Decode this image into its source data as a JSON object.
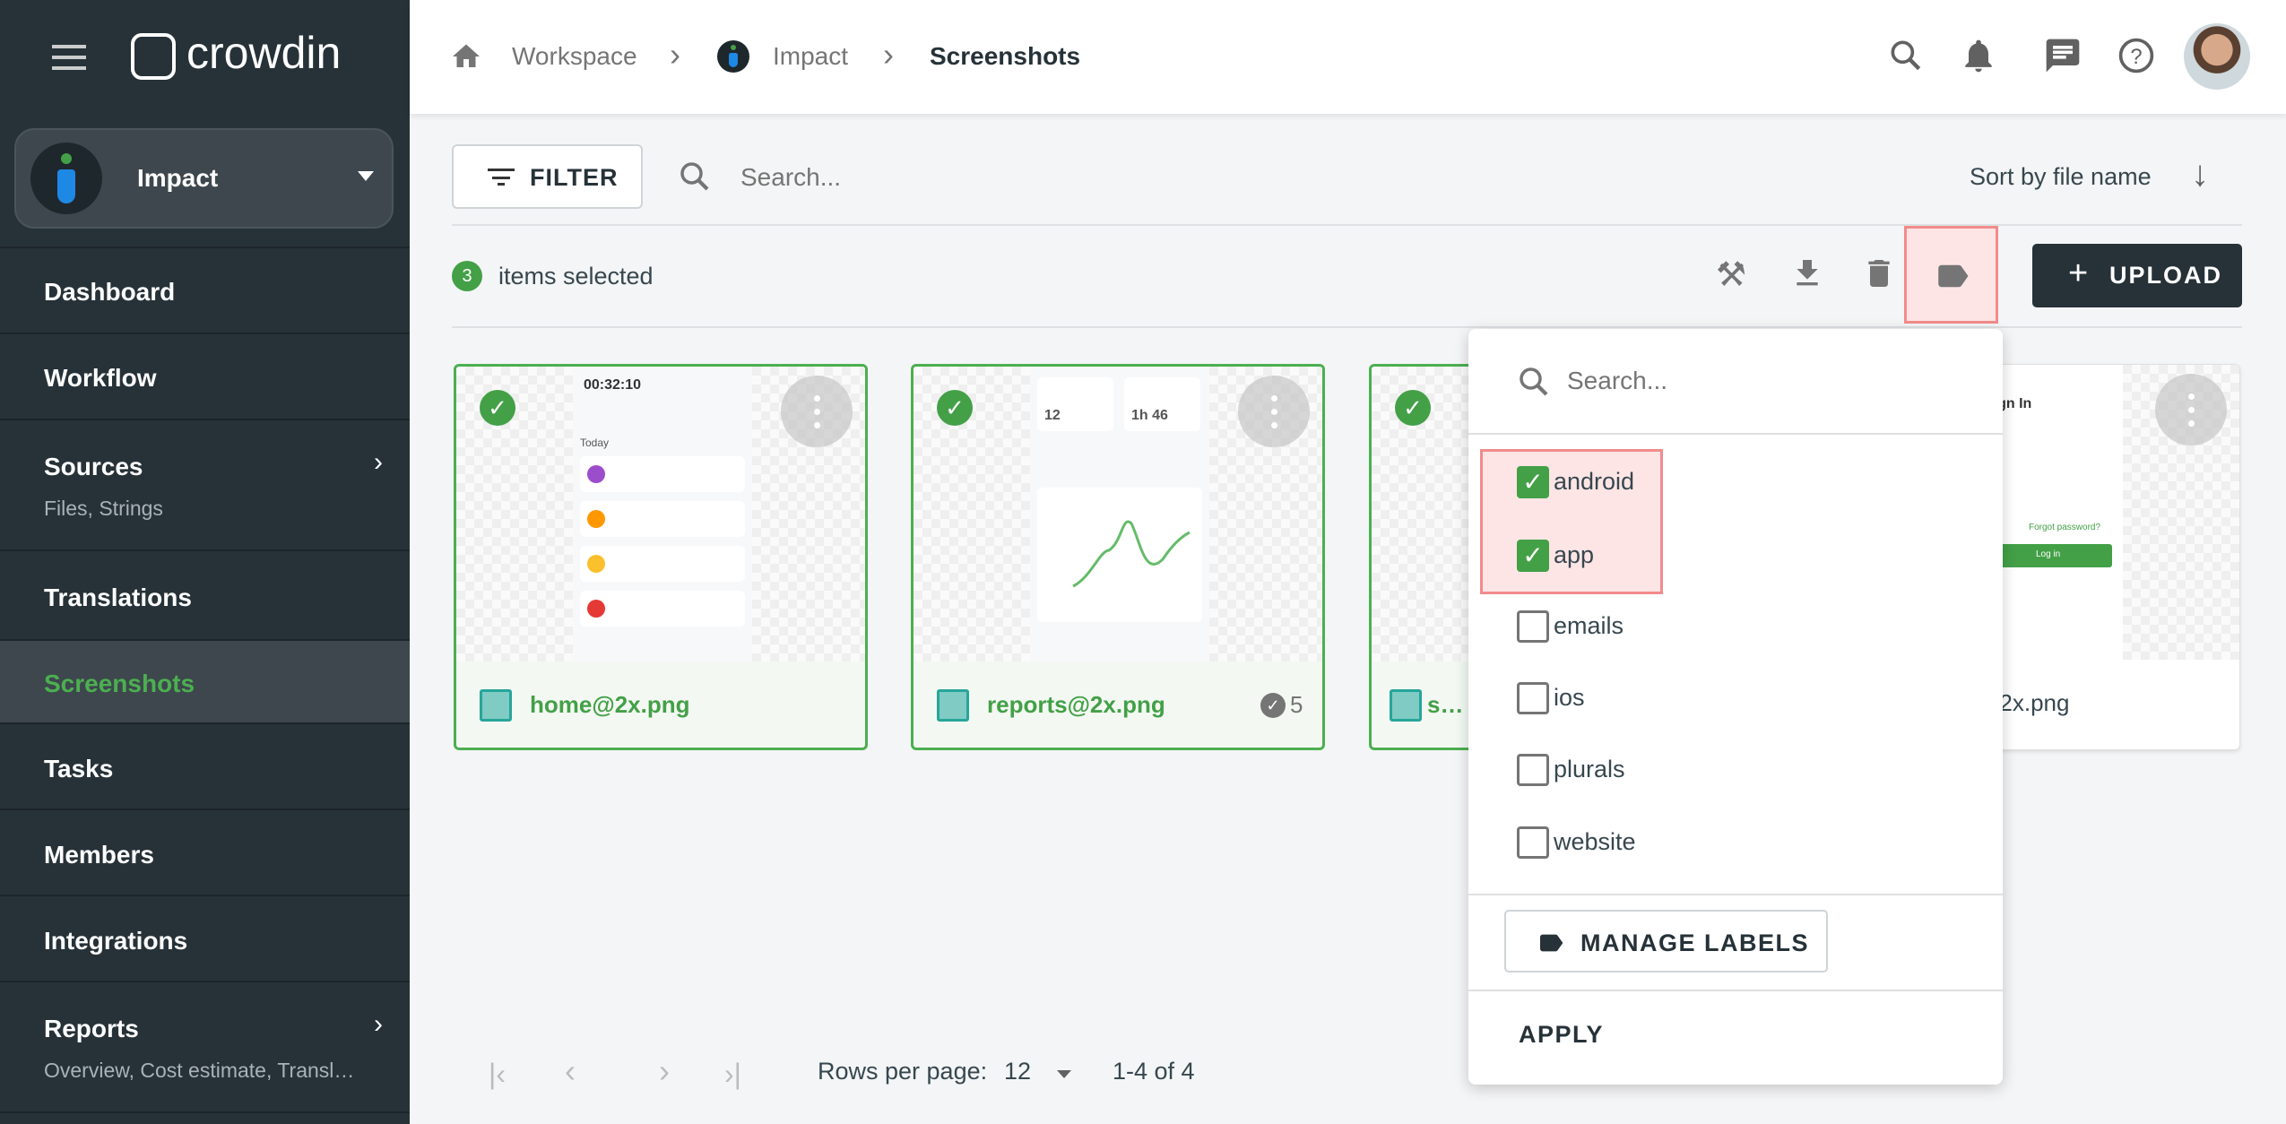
{
  "app": {
    "brand": "crowdin",
    "project": "Impact"
  },
  "sidebar": {
    "items": [
      {
        "label": "Dashboard"
      },
      {
        "label": "Workflow"
      },
      {
        "label": "Sources",
        "sub": "Files, Strings"
      },
      {
        "label": "Translations"
      },
      {
        "label": "Screenshots",
        "active": true
      },
      {
        "label": "Tasks"
      },
      {
        "label": "Members"
      },
      {
        "label": "Integrations"
      },
      {
        "label": "Reports",
        "sub": "Overview, Cost estimate, Transl…"
      }
    ]
  },
  "breadcrumb": {
    "workspace": "Workspace",
    "project": "Impact",
    "current": "Screenshots"
  },
  "toolbar": {
    "filter": "FILTER",
    "search_placeholder": "Search...",
    "sort": "Sort by file name",
    "selected_count": "3",
    "selected_text": "items selected",
    "upload": "UPLOAD"
  },
  "cards": [
    {
      "name": "home@2x.png",
      "selected": true,
      "thumb": {
        "timer": "00:32:10",
        "today": "Today"
      }
    },
    {
      "name": "reports@2x.png",
      "selected": true,
      "count": "5",
      "thumb": {
        "a": "12",
        "b": "1h 46"
      }
    },
    {
      "name": "s…",
      "selected": true
    },
    {
      "name": "…@2x.png",
      "selected": false,
      "thumb": {
        "title": "Sign In",
        "forgot": "Forgot password?",
        "login": "Log in"
      }
    }
  ],
  "labels_menu": {
    "search_placeholder": "Search...",
    "options": [
      {
        "label": "android",
        "checked": true
      },
      {
        "label": "app",
        "checked": true
      },
      {
        "label": "emails",
        "checked": false
      },
      {
        "label": "ios",
        "checked": false
      },
      {
        "label": "plurals",
        "checked": false
      },
      {
        "label": "website",
        "checked": false
      }
    ],
    "manage": "MANAGE LABELS",
    "apply": "APPLY"
  },
  "pagination": {
    "rows_label": "Rows per page:",
    "rows_value": "12",
    "range": "1-4 of 4"
  },
  "colors": {
    "sidebar": "#263238",
    "accent": "#43a047",
    "highlight": "#f28b8b"
  }
}
